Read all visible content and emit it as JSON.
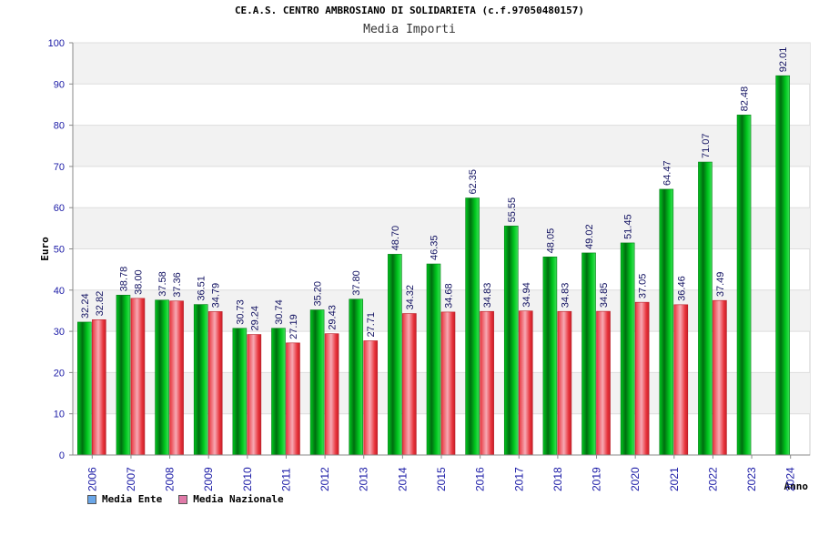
{
  "header": {
    "title": "CE.A.S. CENTRO AMBROSIANO DI SOLIDARIETA (c.f.97050480157)",
    "subtitle": "Media Importi"
  },
  "legend": {
    "items": [
      {
        "label": "Media Ente",
        "color": "#6aa6e8"
      },
      {
        "label": "Media Nazionale",
        "color": "#e07aa8"
      }
    ]
  },
  "chart_data": {
    "type": "bar",
    "title": "CE.A.S. CENTRO AMBROSIANO DI SOLIDARIETA (c.f.97050480157)",
    "subtitle": "Media Importi",
    "xlabel": "Anno",
    "ylabel": "Euro",
    "ylim": [
      0,
      100
    ],
    "yticks": [
      0,
      10,
      20,
      30,
      40,
      50,
      60,
      70,
      80,
      90,
      100
    ],
    "categories": [
      "2006",
      "2007",
      "2008",
      "2009",
      "2010",
      "2011",
      "2012",
      "2013",
      "2014",
      "2015",
      "2016",
      "2017",
      "2018",
      "2019",
      "2020",
      "2021",
      "2022",
      "2023",
      "2024"
    ],
    "series": [
      {
        "name": "Media Ente",
        "color": "#00b21a",
        "values": [
          32.24,
          38.78,
          37.58,
          36.51,
          30.73,
          30.74,
          35.2,
          37.8,
          48.7,
          46.35,
          62.35,
          55.55,
          48.05,
          49.02,
          51.45,
          64.47,
          71.07,
          82.48,
          92.01
        ],
        "labels": [
          "32.24",
          "38.78",
          "37.58",
          "36.51",
          "30.73",
          "30.74",
          "35.20",
          "37.80",
          "48.70",
          "46.35",
          "62.35",
          "55.55",
          "48.05",
          "49.02",
          "51.45",
          "64.47",
          "71.07",
          "82.48",
          "92.01"
        ]
      },
      {
        "name": "Media Nazionale",
        "color": "#e8343c",
        "values": [
          32.82,
          38.0,
          37.36,
          34.79,
          29.24,
          27.19,
          29.43,
          27.71,
          34.32,
          34.68,
          34.83,
          34.94,
          34.83,
          34.85,
          37.05,
          36.46,
          37.49,
          null,
          null
        ],
        "labels": [
          "32.82",
          "38.00",
          "37.36",
          "34.79",
          "29.24",
          "27.19",
          "29.43",
          "27.71",
          "34.32",
          "34.68",
          "34.83",
          "34.94",
          "34.83",
          "34.85",
          "37.05",
          "36.46",
          "37.49",
          null,
          null
        ]
      }
    ],
    "grid": true,
    "legend_position": "bottom-left"
  }
}
